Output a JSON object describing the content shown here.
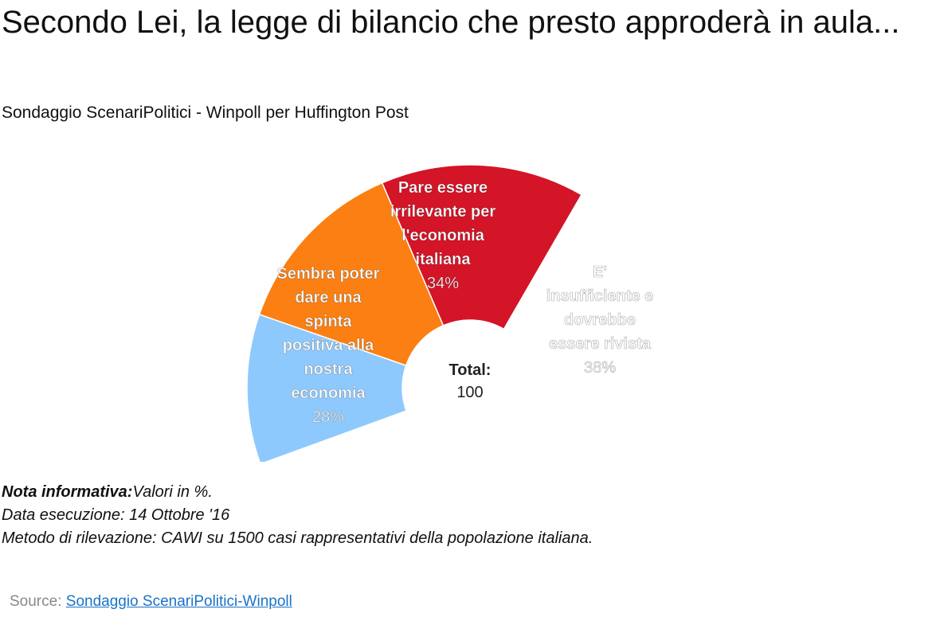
{
  "header": {
    "title": "Secondo Lei, la legge di bilancio che presto approderà in aula...",
    "subtitle": "Sondaggio ScenariPolitici - Winpoll per Huffington Post"
  },
  "chart_data": {
    "type": "pie",
    "style": "semi-donut",
    "categories": [
      "Sembra poter dare una spinta positiva alla nostra economia",
      "Pare essere irrilevante per l'economia italiana",
      "E' insufficiente e dovrebbe essere rivista"
    ],
    "values": [
      28,
      34,
      38
    ],
    "value_labels": [
      "28%",
      "34%",
      "38%"
    ],
    "colors": [
      "#8ec9fd",
      "#fb7f12",
      "#d41427"
    ],
    "center_label": "Total:",
    "center_value": "100"
  },
  "notes": {
    "label": "Nota informativa:",
    "values_text": "Valori in %.",
    "date_line": "Data esecuzione: 14 Ottobre '16",
    "method_line": "Metodo di rilevazione: CAWI su 1500 casi rappresentativi della popolazione italiana."
  },
  "source": {
    "label": "Source: ",
    "link_text": "Sondaggio ScenariPolitici-Winpoll"
  }
}
